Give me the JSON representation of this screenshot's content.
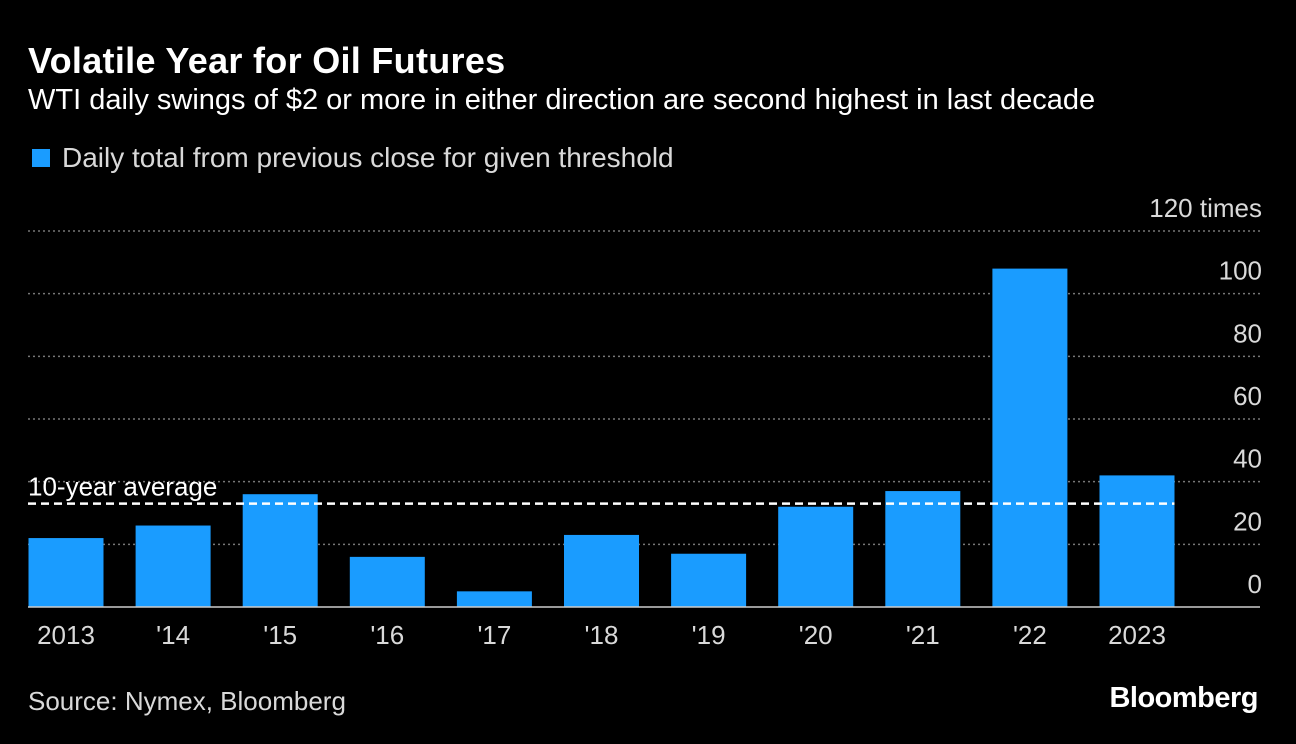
{
  "chart_data": {
    "type": "bar",
    "title": "Volatile Year for Oil Futures",
    "subtitle": "WTI daily swings of $2 or more in either direction are second highest in last decade",
    "legend": [
      {
        "label": "Daily total from previous close for given threshold",
        "color": "#1a9cff"
      }
    ],
    "categories": [
      "2013",
      "'14",
      "'15",
      "'16",
      "'17",
      "'18",
      "'19",
      "'20",
      "'21",
      "'22",
      "2023"
    ],
    "values": [
      22,
      26,
      36,
      16,
      5,
      23,
      17,
      32,
      37,
      108,
      42
    ],
    "ylim": [
      0,
      120
    ],
    "yticks": [
      0,
      20,
      40,
      60,
      80,
      100,
      120
    ],
    "ytick_labels": [
      "0",
      "20",
      "40",
      "60",
      "80",
      "100",
      "120 times"
    ],
    "ylabel": "",
    "xlabel": "",
    "reference_line": {
      "label": "10-year average",
      "value": 33,
      "style": "dashed"
    },
    "grid": true,
    "legend_position": "top-left",
    "source": "Source: Nymex, Bloomberg",
    "brand": "Bloomberg",
    "colors": {
      "bar": "#1a9cff",
      "background": "#000000",
      "grid": "#777777",
      "text": "#ffffff",
      "muted_text": "#d9d9d9"
    }
  }
}
